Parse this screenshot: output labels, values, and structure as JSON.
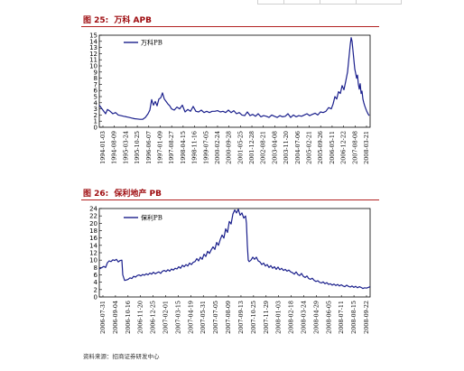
{
  "charts": [
    {
      "fig_label": "图 25:",
      "title": "万科 APB"
    },
    {
      "fig_label": "图 26:",
      "title": "保利地产 PB"
    }
  ],
  "source_note": "资料来源：招商证券研发中心",
  "colors": {
    "line": "#1a1f8c",
    "title": "#9e0b0f",
    "rule": "#b22222"
  },
  "chart_data": [
    {
      "type": "line",
      "title": "万科 APB",
      "series": [
        {
          "name": "万科PB",
          "x": [
            0,
            3,
            7,
            9,
            12,
            15,
            18,
            21,
            24,
            27,
            30,
            33,
            36,
            39,
            42,
            45,
            48,
            51,
            54,
            56,
            58,
            60,
            62,
            64,
            66,
            68,
            70,
            72,
            74,
            76,
            78,
            80,
            83,
            86,
            89,
            92,
            95,
            98,
            101,
            104,
            107,
            110,
            113,
            116,
            119,
            122,
            125,
            128,
            131,
            134,
            137,
            140,
            143,
            146,
            149,
            152,
            155,
            158,
            161,
            164,
            167,
            170,
            173,
            176,
            179,
            182,
            185,
            188,
            191,
            194,
            197,
            200,
            203,
            206,
            209,
            212,
            215,
            218,
            221,
            224,
            227,
            230,
            233,
            236,
            239,
            242,
            245,
            248,
            251,
            254,
            257,
            259,
            261,
            263,
            265,
            267,
            269,
            271,
            273,
            275,
            276,
            277,
            278,
            279,
            280,
            281,
            282,
            283,
            284,
            285,
            286,
            287,
            288,
            289,
            290,
            291,
            292,
            293,
            294,
            295,
            296,
            297,
            298,
            299
          ],
          "values": [
            3.6,
            3.0,
            2.2,
            2.9,
            2.6,
            2.2,
            2.4,
            2.0,
            1.9,
            1.8,
            1.7,
            1.6,
            1.5,
            1.4,
            1.35,
            1.3,
            1.3,
            1.6,
            2.2,
            2.8,
            4.5,
            3.6,
            4.2,
            3.5,
            4.6,
            4.8,
            5.6,
            4.6,
            4.2,
            3.8,
            3.5,
            3.0,
            2.8,
            3.3,
            3.0,
            3.6,
            2.5,
            2.9,
            2.6,
            3.4,
            2.6,
            2.5,
            2.8,
            2.4,
            2.6,
            2.4,
            2.6,
            2.6,
            2.7,
            2.5,
            2.6,
            2.4,
            2.8,
            2.4,
            2.7,
            2.2,
            2.4,
            2.0,
            1.9,
            2.5,
            1.9,
            2.1,
            1.8,
            2.2,
            1.7,
            1.9,
            1.8,
            1.6,
            2.0,
            1.8,
            1.6,
            1.9,
            1.7,
            1.8,
            2.2,
            1.6,
            2.0,
            1.7,
            1.9,
            1.8,
            2.0,
            2.2,
            1.9,
            2.1,
            2.3,
            2.0,
            2.5,
            2.4,
            2.6,
            3.2,
            3.0,
            3.8,
            5.0,
            4.6,
            5.8,
            5.5,
            6.8,
            6.1,
            7.5,
            9.0,
            10.5,
            12.0,
            13.5,
            14.6,
            14.0,
            12.5,
            11.0,
            9.5,
            8.8,
            8.0,
            8.5,
            7.0,
            6.2,
            7.1,
            5.5,
            5.9,
            4.6,
            4.0,
            3.5,
            3.1,
            2.7,
            2.4,
            2.1,
            1.9
          ]
        }
      ],
      "x_tick_labels": [
        "1994-01-03",
        "1994-08-09",
        "1995-03-24",
        "1995-10-25",
        "1996-06-07",
        "1997-01-09",
        "1997-08-27",
        "1998-04-15",
        "1998-11-16",
        "1999-07-05",
        "2000-02-24",
        "2000-09-28",
        "2001-05-25",
        "2001-12-28",
        "2002-08-21",
        "2003-04-08",
        "2003-11-20",
        "2004-07-06",
        "2005-02-21",
        "2005-09-26",
        "2006-05-11",
        "2006-12-22",
        "2007-08-08",
        "2008-03-21"
      ],
      "ylim": [
        0,
        15
      ],
      "y_ticks": [
        0,
        1,
        2,
        3,
        4,
        5,
        6,
        7,
        8,
        9,
        10,
        11,
        12,
        13,
        14,
        15
      ],
      "xlabel": "",
      "ylabel": "",
      "legend": "top-left",
      "grid": false
    },
    {
      "type": "line",
      "title": "保利地产 PB",
      "series": [
        {
          "name": "保利PB",
          "x": [
            0,
            3,
            5,
            7,
            9,
            11,
            13,
            15,
            17,
            19,
            21,
            23,
            25,
            26,
            28,
            30,
            32,
            34,
            36,
            38,
            40,
            42,
            44,
            46,
            48,
            50,
            52,
            54,
            56,
            58,
            60,
            62,
            64,
            66,
            68,
            70,
            72,
            74,
            76,
            78,
            80,
            82,
            84,
            86,
            88,
            90,
            92,
            94,
            96,
            98,
            100,
            102,
            104,
            106,
            108,
            110,
            112,
            114,
            116,
            118,
            120,
            122,
            124,
            126,
            128,
            130,
            132,
            134,
            136,
            138,
            140,
            142,
            144,
            146,
            148,
            150,
            152,
            154,
            156,
            158,
            160,
            162,
            163,
            164,
            165,
            166,
            168,
            170,
            172,
            174,
            176,
            178,
            180,
            182,
            184,
            186,
            188,
            190,
            192,
            194,
            196,
            198,
            200,
            202,
            204,
            206,
            208,
            210,
            212,
            214,
            216,
            218,
            220,
            222,
            224,
            226,
            228,
            230,
            232,
            234,
            236,
            238,
            240,
            242,
            244,
            246,
            248,
            250,
            252,
            254,
            256,
            258,
            260,
            262,
            264,
            266,
            268,
            270,
            272,
            274,
            276,
            278,
            280,
            282,
            284,
            286,
            288,
            290,
            292,
            294,
            296,
            298,
            300
          ],
          "values": [
            7.6,
            8.0,
            8.3,
            8.0,
            9.3,
            9.8,
            9.6,
            10.1,
            9.9,
            10.2,
            9.5,
            9.9,
            10.0,
            6.0,
            4.5,
            4.6,
            4.8,
            5.2,
            5.0,
            5.6,
            5.4,
            5.8,
            6.0,
            5.7,
            6.1,
            5.9,
            6.3,
            6.0,
            6.5,
            6.2,
            6.7,
            6.3,
            6.6,
            6.8,
            6.4,
            7.0,
            7.2,
            6.9,
            7.4,
            7.0,
            7.6,
            7.3,
            7.8,
            7.6,
            8.2,
            7.8,
            8.6,
            8.2,
            8.8,
            8.4,
            9.2,
            8.8,
            9.4,
            9.6,
            10.4,
            9.8,
            10.8,
            10.2,
            11.6,
            11.0,
            12.4,
            11.8,
            12.8,
            13.6,
            12.9,
            14.8,
            14.0,
            15.6,
            16.8,
            16.0,
            18.5,
            17.5,
            20.5,
            19.8,
            22.5,
            23.6,
            22.8,
            23.8,
            22.2,
            22.8,
            21.4,
            22.0,
            20.0,
            14.0,
            10.0,
            9.6,
            10.0,
            10.8,
            10.2,
            10.8,
            9.8,
            9.5,
            8.8,
            9.2,
            8.4,
            8.8,
            8.0,
            8.5,
            7.8,
            8.2,
            7.5,
            8.1,
            7.4,
            7.8,
            7.2,
            7.5,
            7.0,
            7.3,
            6.8,
            6.6,
            6.2,
            6.8,
            6.1,
            5.8,
            6.4,
            5.6,
            5.3,
            5.7,
            5.0,
            4.8,
            5.1,
            4.5,
            4.2,
            4.4,
            4.0,
            3.8,
            4.1,
            3.6,
            3.9,
            3.4,
            3.6,
            3.2,
            3.5,
            3.1,
            3.4,
            3.0,
            3.3,
            3.0,
            2.8,
            3.2,
            2.9,
            2.7,
            3.0,
            2.6,
            2.9,
            2.5,
            2.8,
            2.6,
            2.3,
            2.5,
            2.4,
            2.6,
            2.8
          ]
        }
      ],
      "x_tick_labels": [
        "2006-07-31",
        "2006-09-04",
        "2006-10-16",
        "2006-11-20",
        "2006-12-25",
        "2007-02-01",
        "2007-03-15",
        "2007-04-19",
        "2007-05-31",
        "2007-07-05",
        "2007-08-09",
        "2007-09-13",
        "2007-10-25",
        "2007-11-29",
        "2008-01-03",
        "2008-02-18",
        "2008-03-24",
        "2008-04-29",
        "2008-06-05",
        "2008-07-11",
        "2008-08-15",
        "2008-09-22"
      ],
      "ylim": [
        0,
        24
      ],
      "y_ticks": [
        0,
        2,
        4,
        6,
        8,
        10,
        12,
        14,
        16,
        18,
        20,
        22,
        24
      ],
      "xlabel": "",
      "ylabel": "",
      "legend": "top-left",
      "grid": false
    }
  ]
}
